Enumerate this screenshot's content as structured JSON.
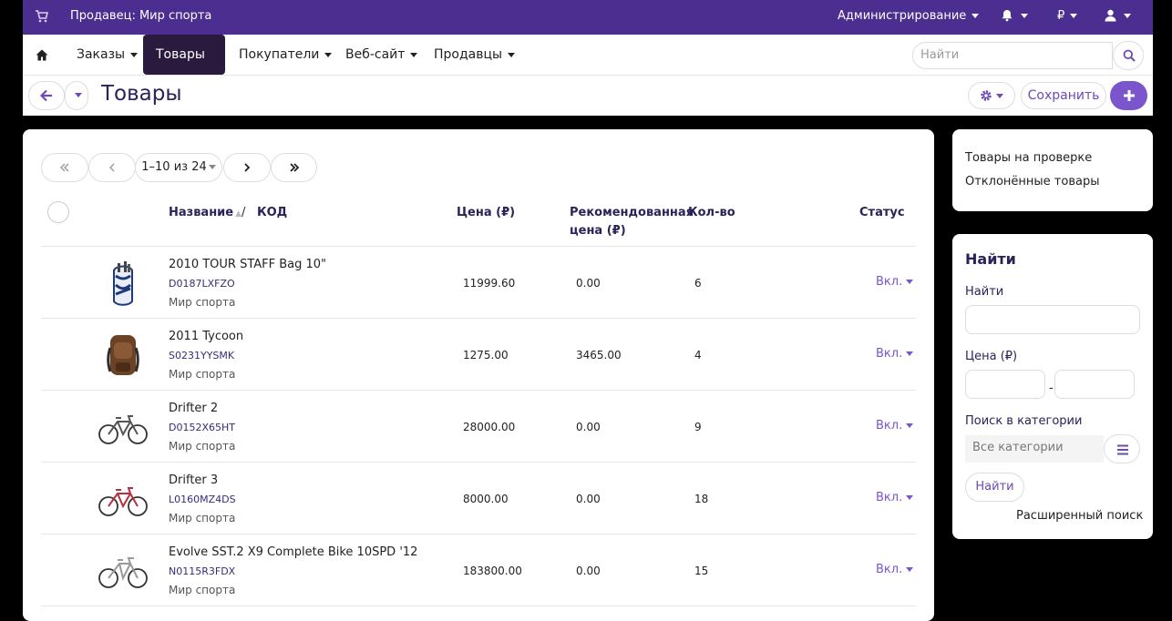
{
  "topbar": {
    "title": "Продавец: Мир спорта",
    "admin": "Администрирование",
    "currency": "₽"
  },
  "nav": {
    "items": [
      "Заказы",
      "Товары",
      "Покупатели",
      "Веб-сайт",
      "Продавцы"
    ],
    "active": "Товары",
    "search_placeholder": "Найти"
  },
  "page": {
    "title": "Товары",
    "save_label": "Сохранить"
  },
  "pagination": {
    "range": "1–10 из 24"
  },
  "table": {
    "headers": {
      "name": "Название",
      "slash": "/",
      "code": "КОД",
      "price": "Цена (₽)",
      "rec_price_line1": "Рекомендованная",
      "rec_price_line2": "цена (₽)",
      "qty": "Кол-во",
      "status": "Статус"
    },
    "rows": [
      {
        "name": "2010 TOUR STAFF Bag 10\"",
        "code": "D0187LXFZO",
        "vendor": "Мир спорта",
        "price": "11999.60",
        "rec": "0.00",
        "qty": "6",
        "status": "Вкл.",
        "thumb": "golf-bag-icon"
      },
      {
        "name": "2011 Tycoon",
        "code": "S0231YYSMK",
        "vendor": "Мир спорта",
        "price": "1275.00",
        "rec": "3465.00",
        "qty": "4",
        "status": "Вкл.",
        "thumb": "backpack-icon"
      },
      {
        "name": "Drifter 2",
        "code": "D0152X65HT",
        "vendor": "Мир спорта",
        "price": "28000.00",
        "rec": "0.00",
        "qty": "9",
        "status": "Вкл.",
        "thumb": "bicycle-icon"
      },
      {
        "name": "Drifter 3",
        "code": "L0160MZ4DS",
        "vendor": "Мир спорта",
        "price": "8000.00",
        "rec": "0.00",
        "qty": "18",
        "status": "Вкл.",
        "thumb": "bicycle-icon"
      },
      {
        "name": "Evolve SST.2 X9 Complete Bike 10SPD '12",
        "code": "N0115R3FDX",
        "vendor": "Мир спорта",
        "price": "183800.00",
        "rec": "0.00",
        "qty": "15",
        "status": "Вкл.",
        "thumb": "bicycle-icon"
      }
    ]
  },
  "sidebar": {
    "links": [
      "Товары на проверке",
      "Отклонённые товары"
    ],
    "search": {
      "heading": "Найти",
      "find_label": "Найти",
      "price_label": "Цена (₽)",
      "price_dash": "-",
      "category_label": "Поиск в категории",
      "category_value": "Все категории",
      "find_button": "Найти",
      "advanced": "Расширенный поиск"
    }
  },
  "colors": {
    "topbar": "#4b2e8f",
    "accent": "#7a55cc",
    "active_nav": "#2a1a3e"
  }
}
